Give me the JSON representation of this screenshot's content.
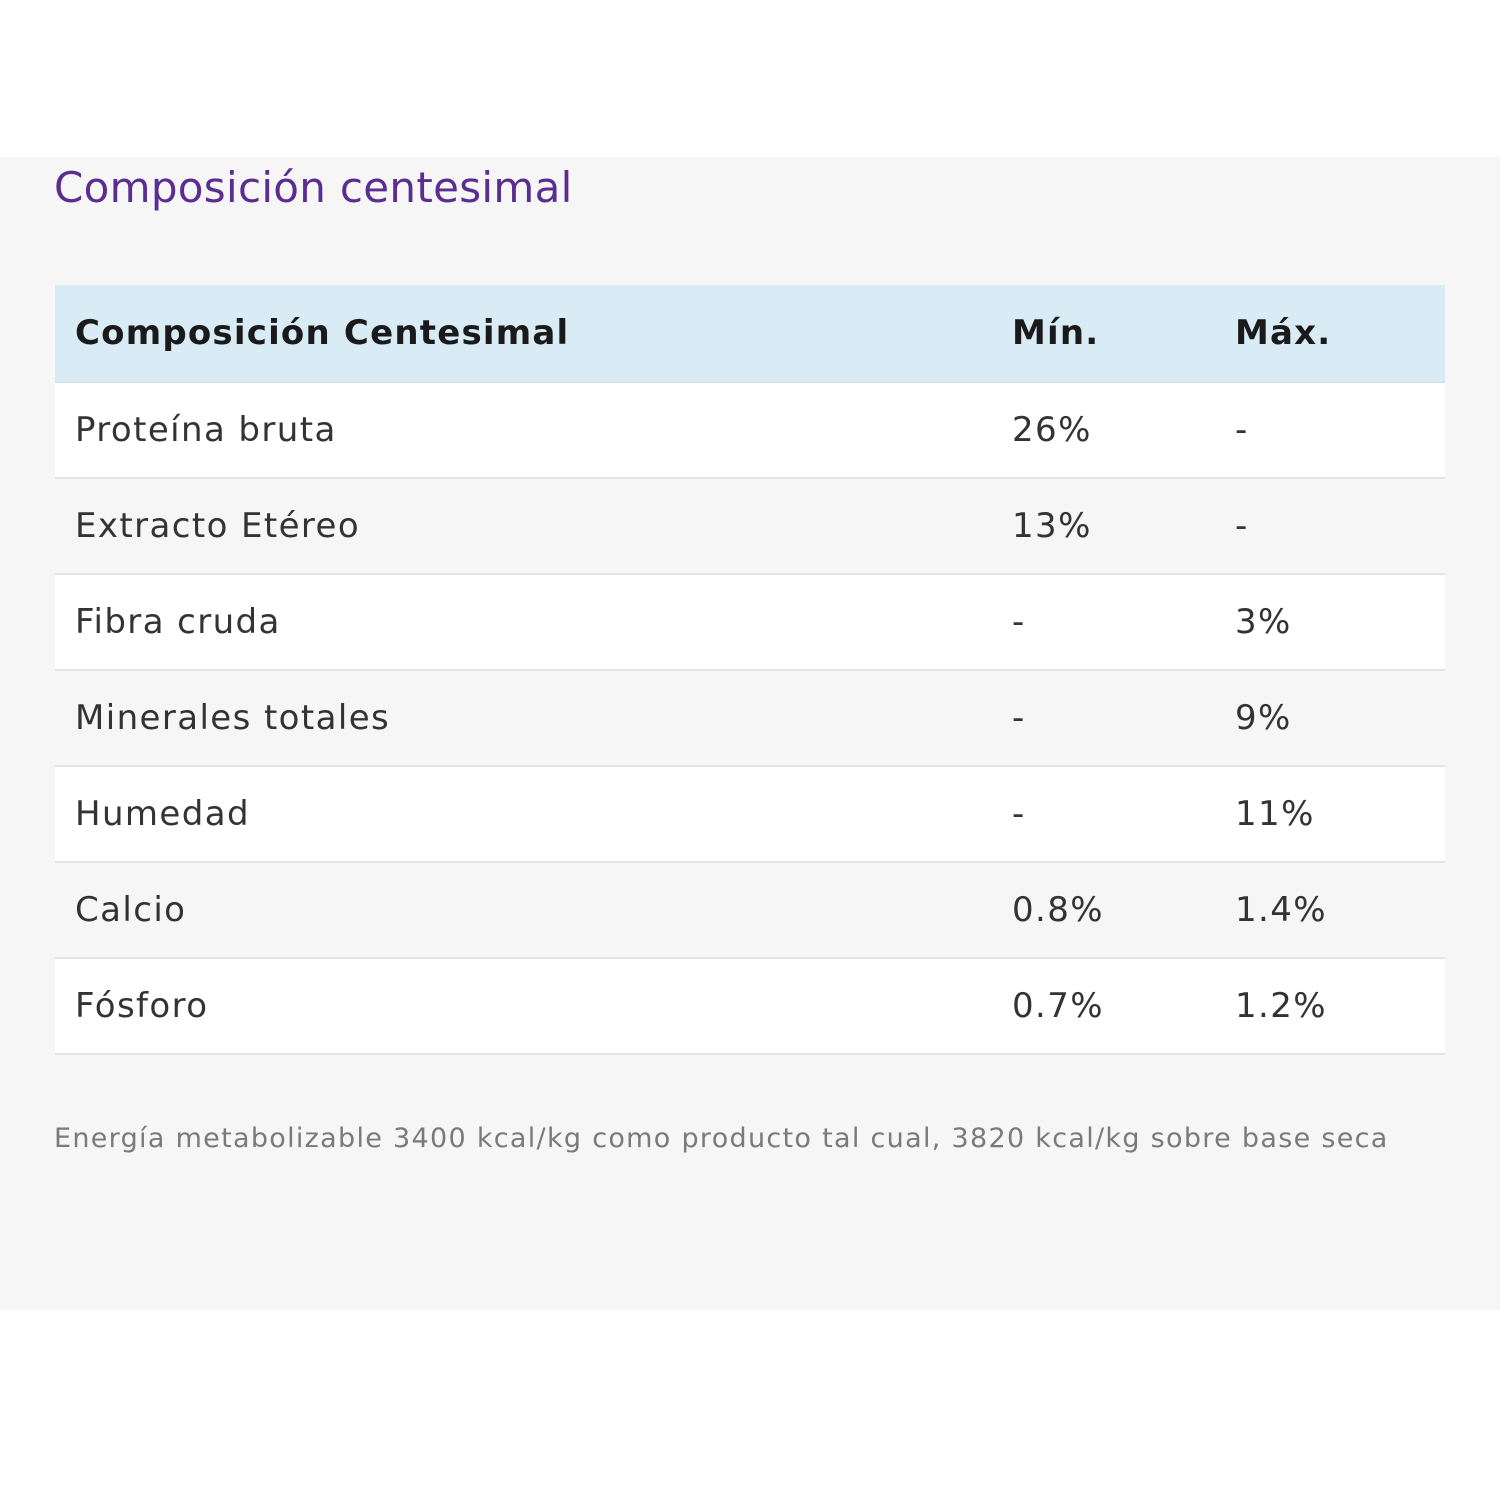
{
  "section": {
    "title": "Composición centesimal"
  },
  "table": {
    "headers": {
      "name": "Composición Centesimal",
      "min": "Mín.",
      "max": "Máx."
    },
    "rows": [
      {
        "name": "Proteína bruta",
        "min": "26%",
        "max": "-"
      },
      {
        "name": "Extracto Etéreo",
        "min": "13%",
        "max": "-"
      },
      {
        "name": "Fibra cruda",
        "min": "-",
        "max": "3%"
      },
      {
        "name": "Minerales totales",
        "min": "-",
        "max": "9%"
      },
      {
        "name": "Humedad",
        "min": "-",
        "max": "11%"
      },
      {
        "name": "Calcio",
        "min": "0.8%",
        "max": "1.4%"
      },
      {
        "name": "Fósforo",
        "min": "0.7%",
        "max": "1.2%"
      }
    ]
  },
  "note": "Energía metabolizable 3400 kcal/kg como producto tal cual, 3820 kcal/kg sobre base seca",
  "colors": {
    "title": "#5a2d91",
    "header_background": "#d9ebf5",
    "panel_background": "#f6f6f6"
  }
}
